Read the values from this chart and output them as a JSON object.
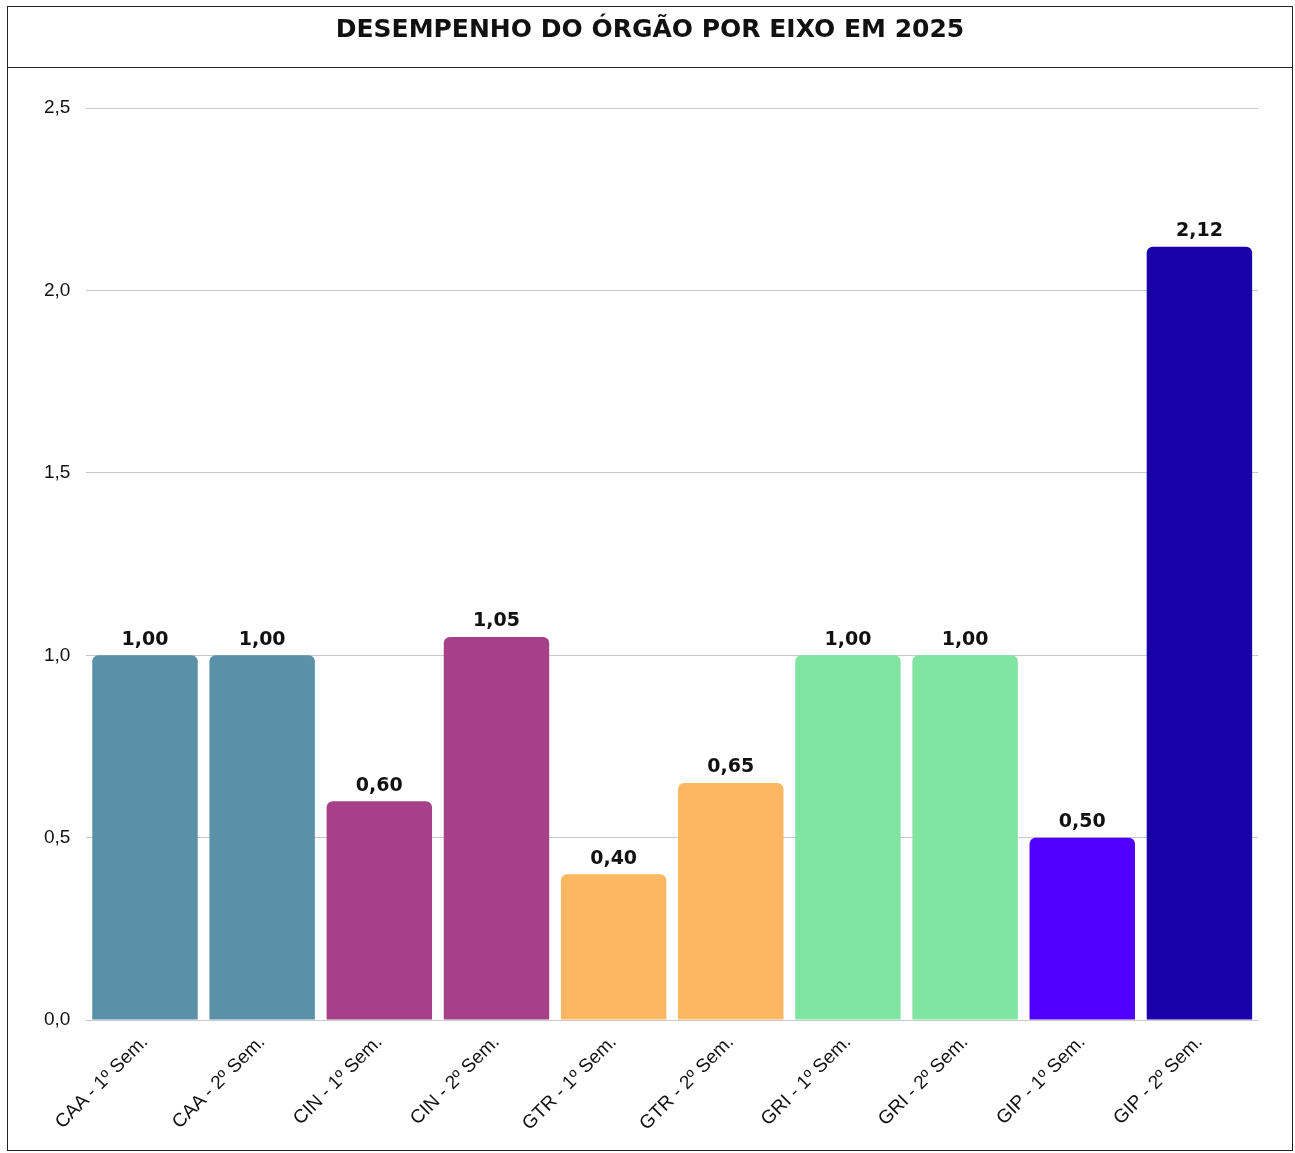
{
  "chart_data": {
    "type": "bar",
    "title": "DESEMPENHO DO ÓRGÃO POR EIXO EM 2025",
    "categories": [
      "CAA - 1º Sem.",
      "CAA - 2º Sem.",
      "CIN - 1º Sem.",
      "CIN - 2º Sem.",
      "GTR - 1º Sem.",
      "GTR - 2º Sem.",
      "GRI - 1º Sem.",
      "GRI - 2º Sem.",
      "GIP - 1º Sem.",
      "GIP - 2º Sem."
    ],
    "values": [
      1.0,
      1.0,
      0.6,
      1.05,
      0.4,
      0.65,
      1.0,
      1.0,
      0.5,
      2.12
    ],
    "colors": [
      "#5b91a8",
      "#5b91a8",
      "#a64189",
      "#a64189",
      "#fdb762",
      "#fdb762",
      "#80e5a0",
      "#80e5a0",
      "#4f00ff",
      "#1a00a8"
    ],
    "value_labels": [
      "1,00",
      "1,00",
      "0,60",
      "1,05",
      "0,40",
      "0,65",
      "1,00",
      "1,00",
      "0,50",
      "2,12"
    ],
    "ylim": [
      0,
      2.5
    ],
    "yticks": [
      {
        "value": 0,
        "label": "0,0"
      },
      {
        "value": 0.5,
        "label": "0,5"
      },
      {
        "value": 1,
        "label": "1,0"
      },
      {
        "value": 1.5,
        "label": "1,5"
      },
      {
        "value": 2,
        "label": "2,0"
      },
      {
        "value": 2.5,
        "label": "2,5"
      }
    ],
    "grid": "y"
  }
}
